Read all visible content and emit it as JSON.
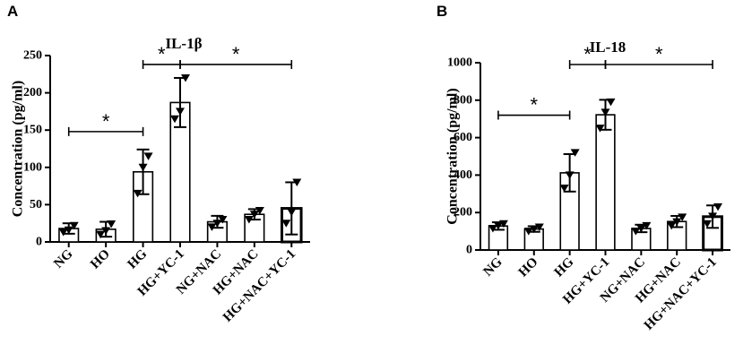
{
  "chart_data": [
    {
      "panel": "A",
      "type": "bar",
      "title": "IL-1β",
      "ylabel": "Concentration (pg/ml)",
      "ylim": [
        0,
        250
      ],
      "yticks": [
        0,
        50,
        100,
        150,
        200,
        250
      ],
      "categories": [
        "NG",
        "HO",
        "HG",
        "HG+YC-1",
        "NG+NAC",
        "HG+NAC",
        "HG+NAC+YC-1"
      ],
      "values": [
        18,
        17,
        94,
        187,
        27,
        37,
        45
      ],
      "errors": [
        7,
        10,
        30,
        33,
        8,
        7,
        35
      ],
      "points": [
        [
          13,
          16,
          22
        ],
        [
          10,
          15,
          24
        ],
        [
          65,
          100,
          115
        ],
        [
          165,
          175,
          220
        ],
        [
          20,
          25,
          30
        ],
        [
          30,
          37,
          42
        ],
        [
          25,
          40,
          80
        ]
      ],
      "significance": [
        {
          "from": 0,
          "to": 2,
          "label": "*"
        },
        {
          "from": 2,
          "to": 3,
          "label": "*"
        },
        {
          "from": 3,
          "to": 6,
          "label": "*"
        }
      ]
    },
    {
      "panel": "B",
      "type": "bar",
      "title": "IL-18",
      "ylabel": "Concentration (pg/ml)",
      "ylim": [
        0,
        1000
      ],
      "yticks": [
        0,
        200,
        400,
        600,
        800,
        1000
      ],
      "categories": [
        "NG",
        "HO",
        "HG",
        "HG+YC-1",
        "NG+NAC",
        "HG+NAC",
        "HG+NAC+YC-1"
      ],
      "values": [
        128,
        112,
        412,
        722,
        115,
        152,
        178
      ],
      "errors": [
        20,
        15,
        100,
        80,
        20,
        30,
        60
      ],
      "points": [
        [
          115,
          130,
          140
        ],
        [
          100,
          112,
          122
        ],
        [
          330,
          400,
          520
        ],
        [
          650,
          735,
          790
        ],
        [
          100,
          115,
          130
        ],
        [
          130,
          150,
          175
        ],
        [
          140,
          180,
          230
        ]
      ],
      "significance": [
        {
          "from": 0,
          "to": 2,
          "label": "*"
        },
        {
          "from": 2,
          "to": 3,
          "label": "*"
        },
        {
          "from": 3,
          "to": 6,
          "label": "*"
        }
      ]
    }
  ]
}
